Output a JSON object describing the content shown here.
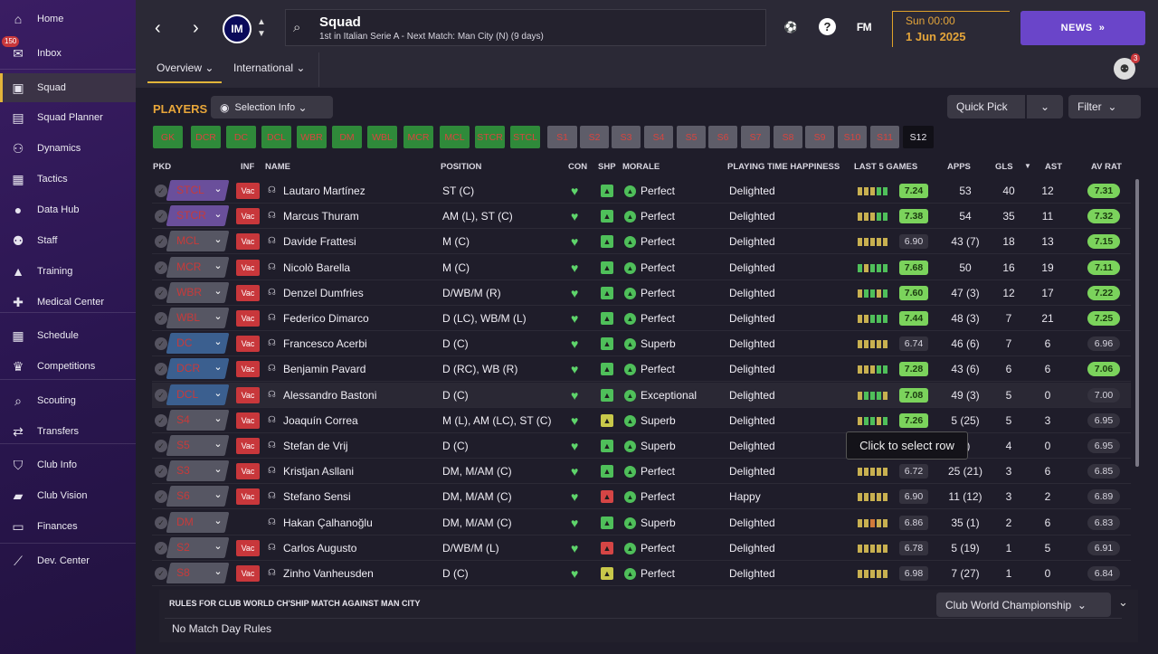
{
  "sidebar": {
    "items": [
      {
        "label": "Home",
        "icon": "home-icon",
        "glyph": "⌂"
      },
      {
        "label": "Inbox",
        "icon": "inbox-icon",
        "glyph": "✉",
        "badge": "150"
      },
      {
        "label": "Squad",
        "icon": "shirt-icon",
        "glyph": "▣",
        "active": true
      },
      {
        "label": "Squad Planner",
        "icon": "clipboard-icon",
        "glyph": "▤"
      },
      {
        "label": "Dynamics",
        "icon": "dynamics-icon",
        "glyph": "⚇"
      },
      {
        "label": "Tactics",
        "icon": "tactics-icon",
        "glyph": "▦"
      },
      {
        "label": "Data Hub",
        "icon": "data-hub-icon",
        "glyph": "●"
      },
      {
        "label": "Staff",
        "icon": "staff-icon",
        "glyph": "⚉"
      },
      {
        "label": "Training",
        "icon": "training-icon",
        "glyph": "▲"
      },
      {
        "label": "Medical Center",
        "icon": "medical-icon",
        "glyph": "✚"
      },
      {
        "label": "Schedule",
        "icon": "calendar-icon",
        "glyph": "▦"
      },
      {
        "label": "Competitions",
        "icon": "trophy-icon",
        "glyph": "♛"
      },
      {
        "label": "Scouting",
        "icon": "search-icon",
        "glyph": "⌕"
      },
      {
        "label": "Transfers",
        "icon": "transfers-icon",
        "glyph": "⇄"
      },
      {
        "label": "Club Info",
        "icon": "shield-icon",
        "glyph": "⛉"
      },
      {
        "label": "Club Vision",
        "icon": "briefcase-icon",
        "glyph": "▰"
      },
      {
        "label": "Finances",
        "icon": "finances-icon",
        "glyph": "▭"
      },
      {
        "label": "Dev. Center",
        "icon": "dev-center-icon",
        "glyph": "⟋"
      }
    ]
  },
  "header": {
    "title": "Squad",
    "subtitle": "1st in Italian Serie A - Next Match: Man City (N) (9 days)",
    "club_initials": "IM",
    "fm_logo": "FM",
    "date_line1": "Sun 00:00",
    "date_line2": "1 Jun 2025",
    "news_label": "NEWS",
    "avatar_badge": "3"
  },
  "tabs": {
    "overview": "Overview",
    "international": "International"
  },
  "players_section": {
    "title": "PLAYERS",
    "selection_info": "Selection Info",
    "quick_pick": "Quick Pick",
    "filter": "Filter"
  },
  "chips": [
    {
      "label": "GK",
      "style": "g"
    },
    {
      "label": "DCR",
      "style": "g"
    },
    {
      "label": "DC",
      "style": "g"
    },
    {
      "label": "DCL",
      "style": "g"
    },
    {
      "label": "WBR",
      "style": "g"
    },
    {
      "label": "DM",
      "style": "g"
    },
    {
      "label": "WBL",
      "style": "g"
    },
    {
      "label": "MCR",
      "style": "g"
    },
    {
      "label": "MCL",
      "style": "g"
    },
    {
      "label": "STCR",
      "style": "g"
    },
    {
      "label": "STCL",
      "style": "g"
    },
    {
      "label": "S1",
      "style": "s"
    },
    {
      "label": "S2",
      "style": "s"
    },
    {
      "label": "S3",
      "style": "s"
    },
    {
      "label": "S4",
      "style": "s"
    },
    {
      "label": "S5",
      "style": "s"
    },
    {
      "label": "S6",
      "style": "s"
    },
    {
      "label": "S7",
      "style": "s"
    },
    {
      "label": "S8",
      "style": "s"
    },
    {
      "label": "S9",
      "style": "s"
    },
    {
      "label": "S10",
      "style": "s"
    },
    {
      "label": "S11",
      "style": "s"
    },
    {
      "label": "S12",
      "style": "sel"
    }
  ],
  "columns": {
    "pkd": "PKD",
    "inf": "INF",
    "name": "NAME",
    "position": "POSITION",
    "con": "CON",
    "shp": "SHP",
    "morale": "MORALE",
    "happiness": "PLAYING TIME HAPPINESS",
    "last5": "LAST 5 GAMES",
    "apps": "APPS",
    "gls": "GLS",
    "ast": "AST",
    "avrat": "AV RAT"
  },
  "players": [
    {
      "pos": "STCL",
      "pos_style": "v",
      "inf": "Vac",
      "name": "Lautaro Martínez",
      "position": "ST (C)",
      "shp": "g",
      "morale": "Perfect",
      "happiness": "Delighted",
      "last5": [
        "#c8b050",
        "#c8b050",
        "#c8b050",
        "#4fbf5a",
        "#4fbf5a"
      ],
      "form": "7.24",
      "form_style": "g",
      "apps": "53",
      "gls": "40",
      "ast": "12",
      "rat": "7.31",
      "rat_style": "g"
    },
    {
      "pos": "STCR",
      "pos_style": "v",
      "inf": "Vac",
      "name": "Marcus Thuram",
      "position": "AM (L), ST (C)",
      "shp": "g",
      "morale": "Perfect",
      "happiness": "Delighted",
      "last5": [
        "#c8b050",
        "#c8b050",
        "#c8b050",
        "#4fbf5a",
        "#4fbf5a"
      ],
      "form": "7.38",
      "form_style": "g",
      "apps": "54",
      "gls": "35",
      "ast": "11",
      "rat": "7.32",
      "rat_style": "g"
    },
    {
      "pos": "MCL",
      "pos_style": "n",
      "inf": "Vac",
      "name": "Davide Frattesi",
      "position": "M (C)",
      "shp": "g",
      "morale": "Perfect",
      "happiness": "Delighted",
      "last5": [
        "#c8b050",
        "#c8b050",
        "#c8b050",
        "#c8b050",
        "#c8b050"
      ],
      "form": "6.90",
      "form_style": "n",
      "apps": "43 (7)",
      "gls": "18",
      "ast": "13",
      "rat": "7.15",
      "rat_style": "g"
    },
    {
      "pos": "MCR",
      "pos_style": "n",
      "inf": "Vac",
      "name": "Nicolò Barella",
      "position": "M (C)",
      "shp": "g",
      "morale": "Perfect",
      "happiness": "Delighted",
      "last5": [
        "#4fbf5a",
        "#c8b050",
        "#4fbf5a",
        "#4fbf5a",
        "#4fbf5a"
      ],
      "form": "7.68",
      "form_style": "g",
      "apps": "50",
      "gls": "16",
      "ast": "19",
      "rat": "7.11",
      "rat_style": "g"
    },
    {
      "pos": "WBR",
      "pos_style": "n",
      "inf": "Vac",
      "name": "Denzel Dumfries",
      "position": "D/WB/M (R)",
      "shp": "g",
      "morale": "Perfect",
      "happiness": "Delighted",
      "last5": [
        "#c8b050",
        "#4fbf5a",
        "#4fbf5a",
        "#c8b050",
        "#4fbf5a"
      ],
      "form": "7.60",
      "form_style": "g",
      "apps": "47 (3)",
      "gls": "12",
      "ast": "17",
      "rat": "7.22",
      "rat_style": "g"
    },
    {
      "pos": "WBL",
      "pos_style": "n",
      "inf": "Vac",
      "name": "Federico Dimarco",
      "position": "D (LC), WB/M (L)",
      "shp": "g",
      "morale": "Perfect",
      "happiness": "Delighted",
      "last5": [
        "#c8b050",
        "#c8b050",
        "#4fbf5a",
        "#4fbf5a",
        "#4fbf5a"
      ],
      "form": "7.44",
      "form_style": "g",
      "apps": "48 (3)",
      "gls": "7",
      "ast": "21",
      "rat": "7.25",
      "rat_style": "g"
    },
    {
      "pos": "DC",
      "pos_style": "b",
      "inf": "Vac",
      "name": "Francesco Acerbi",
      "position": "D (C)",
      "shp": "g",
      "morale": "Superb",
      "happiness": "Delighted",
      "last5": [
        "#c8b050",
        "#c8b050",
        "#c8b050",
        "#c8b050",
        "#c8b050"
      ],
      "form": "6.74",
      "form_style": "n",
      "apps": "46 (6)",
      "gls": "7",
      "ast": "6",
      "rat": "6.96",
      "rat_style": "n"
    },
    {
      "pos": "DCR",
      "pos_style": "b",
      "inf": "Vac",
      "name": "Benjamin Pavard",
      "position": "D (RC), WB (R)",
      "shp": "g",
      "morale": "Perfect",
      "happiness": "Delighted",
      "last5": [
        "#c8b050",
        "#c8b050",
        "#c8b050",
        "#4fbf5a",
        "#4fbf5a"
      ],
      "form": "7.28",
      "form_style": "g",
      "apps": "43 (6)",
      "gls": "6",
      "ast": "6",
      "rat": "7.06",
      "rat_style": "g"
    },
    {
      "pos": "DCL",
      "pos_style": "b",
      "inf": "Vac",
      "name": "Alessandro Bastoni",
      "position": "D (C)",
      "shp": "g",
      "morale": "Exceptional",
      "happiness": "Delighted",
      "last5": [
        "#c8b050",
        "#4fbf5a",
        "#4fbf5a",
        "#4fbf5a",
        "#c8b050"
      ],
      "form": "7.08",
      "form_style": "g",
      "apps": "49 (3)",
      "gls": "5",
      "ast": "0",
      "rat": "7.00",
      "rat_style": "n",
      "highlight": true
    },
    {
      "pos": "S4",
      "pos_style": "n",
      "inf": "Vac",
      "name": "Joaquín Correa",
      "position": "M (L), AM (LC), ST (C)",
      "shp": "y",
      "morale": "Superb",
      "happiness": "Delighted",
      "last5": [
        "#c8b050",
        "#4fbf5a",
        "#4fbf5a",
        "#c8b050",
        "#4fbf5a"
      ],
      "form": "7.26",
      "form_style": "g",
      "apps": "5 (25)",
      "gls": "5",
      "ast": "3",
      "rat": "6.95",
      "rat_style": "n"
    },
    {
      "pos": "S5",
      "pos_style": "n",
      "inf": "Vac",
      "name": "Stefan de Vrij",
      "position": "D (C)",
      "shp": "g",
      "morale": "Superb",
      "happiness": "Delighted",
      "last5": [
        "#c8b050",
        "#c8b050",
        "#c8b050",
        "#c8b050",
        "#c8b050"
      ],
      "form": "",
      "form_style": "n",
      "apps": "7)",
      "gls": "4",
      "ast": "0",
      "rat": "6.95",
      "rat_style": "n"
    },
    {
      "pos": "S3",
      "pos_style": "n",
      "inf": "Vac",
      "name": "Kristjan Asllani",
      "position": "DM, M/AM (C)",
      "shp": "g",
      "morale": "Perfect",
      "happiness": "Delighted",
      "last5": [
        "#c8b050",
        "#c8b050",
        "#c8b050",
        "#c8b050",
        "#c8b050"
      ],
      "form": "6.72",
      "form_style": "n",
      "apps": "25 (21)",
      "gls": "3",
      "ast": "6",
      "rat": "6.85",
      "rat_style": "n"
    },
    {
      "pos": "S6",
      "pos_style": "n",
      "inf": "Vac",
      "name": "Stefano Sensi",
      "position": "DM, M/AM (C)",
      "shp": "r",
      "morale": "Perfect",
      "happiness": "Happy",
      "last5": [
        "#c8b050",
        "#c8b050",
        "#c8b050",
        "#c8b050",
        "#c8b050"
      ],
      "form": "6.90",
      "form_style": "n",
      "apps": "11 (12)",
      "gls": "3",
      "ast": "2",
      "rat": "6.89",
      "rat_style": "n"
    },
    {
      "pos": "DM",
      "pos_style": "n",
      "inf": "",
      "name": "Hakan Çalhanoğlu",
      "position": "DM, M/AM (C)",
      "shp": "g",
      "morale": "Superb",
      "happiness": "Delighted",
      "last5": [
        "#c8b050",
        "#c8b050",
        "#d07a3a",
        "#c8b050",
        "#c8b050"
      ],
      "form": "6.86",
      "form_style": "n",
      "apps": "35 (1)",
      "gls": "2",
      "ast": "6",
      "rat": "6.83",
      "rat_style": "n"
    },
    {
      "pos": "S2",
      "pos_style": "n",
      "inf": "Vac",
      "name": "Carlos Augusto",
      "position": "D/WB/M (L)",
      "shp": "r",
      "morale": "Perfect",
      "happiness": "Delighted",
      "last5": [
        "#c8b050",
        "#c8b050",
        "#c8b050",
        "#c8b050",
        "#c8b050"
      ],
      "form": "6.78",
      "form_style": "n",
      "apps": "5 (19)",
      "gls": "1",
      "ast": "5",
      "rat": "6.91",
      "rat_style": "n"
    },
    {
      "pos": "S8",
      "pos_style": "n",
      "inf": "Vac",
      "name": "Zinho Vanheusden",
      "position": "D (C)",
      "shp": "y",
      "morale": "Perfect",
      "happiness": "Delighted",
      "last5": [
        "#c8b050",
        "#c8b050",
        "#c8b050",
        "#c8b050",
        "#c8b050"
      ],
      "form": "6.98",
      "form_style": "n",
      "apps": "7 (27)",
      "gls": "1",
      "ast": "0",
      "rat": "6.84",
      "rat_style": "n"
    }
  ],
  "tooltip": "Click to select row",
  "rules": {
    "title": "RULES FOR CLUB WORLD CH'SHIP MATCH AGAINST MAN CITY",
    "competition": "Club World Championship",
    "value": "No Match Day Rules"
  }
}
